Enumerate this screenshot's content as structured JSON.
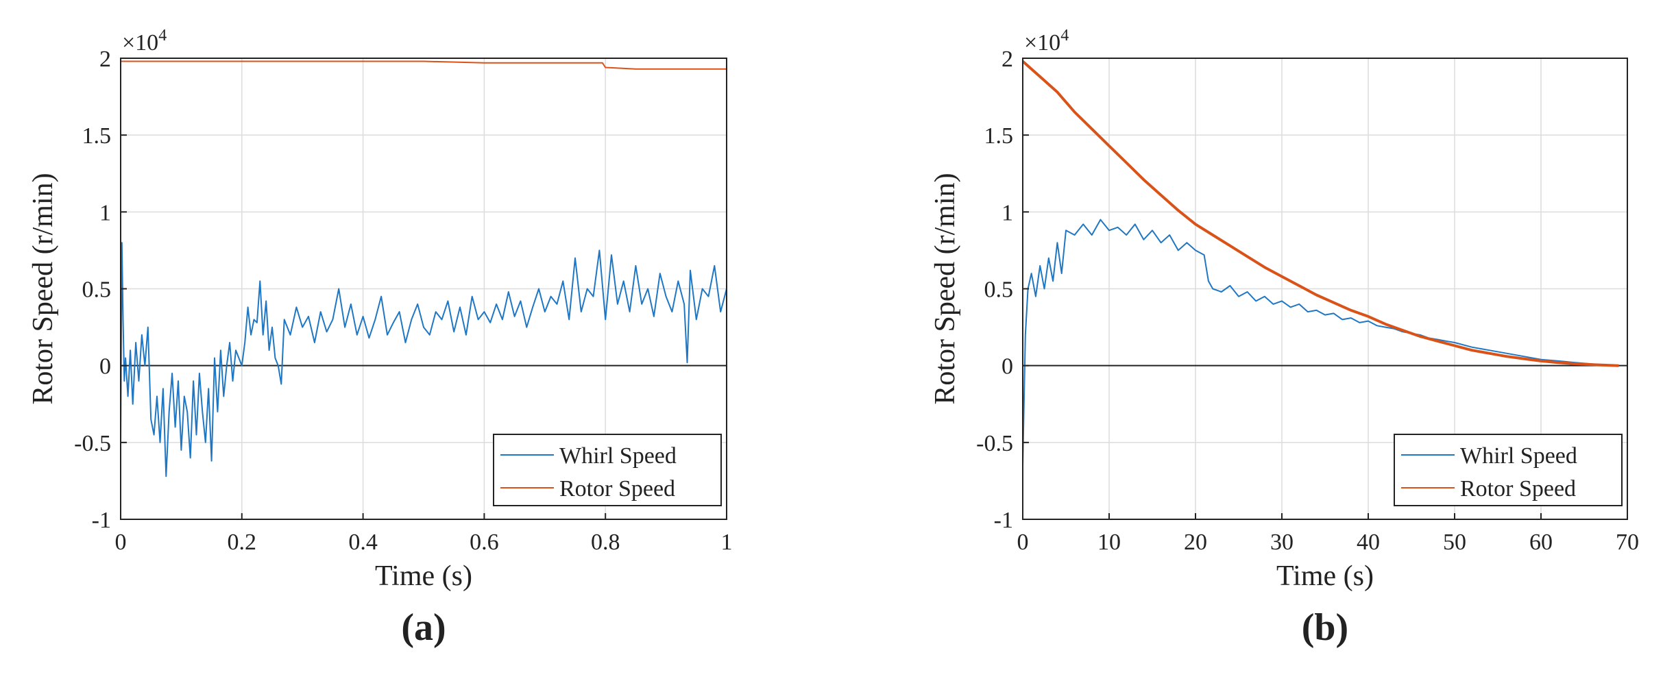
{
  "chart_data": [
    {
      "type": "line",
      "panel_label": "(a)",
      "xlabel": "Time (s)",
      "ylabel": "Rotor Speed (r/min)",
      "y_scale_note": "×10",
      "y_scale_exp": "4",
      "xlim": [
        0,
        1
      ],
      "ylim": [
        -1,
        2
      ],
      "xticks": [
        0,
        0.2,
        0.4,
        0.6,
        0.8,
        1
      ],
      "xtick_labels": [
        "0",
        "0.2",
        "0.4",
        "0.6",
        "0.8",
        "1"
      ],
      "yticks": [
        -1,
        -0.5,
        0,
        0.5,
        1,
        1.5,
        2
      ],
      "ytick_labels": [
        "-1",
        "-0.5",
        "0",
        "0.5",
        "1",
        "1.5",
        "2"
      ],
      "grid": true,
      "legend_position": "bottom-right",
      "series": [
        {
          "name": "Whirl Speed",
          "color": "#1f77c4",
          "x": [
            0,
            0.002,
            0.004,
            0.006,
            0.008,
            0.012,
            0.016,
            0.02,
            0.025,
            0.03,
            0.035,
            0.04,
            0.045,
            0.05,
            0.055,
            0.06,
            0.065,
            0.07,
            0.075,
            0.08,
            0.085,
            0.09,
            0.095,
            0.1,
            0.105,
            0.11,
            0.115,
            0.12,
            0.125,
            0.13,
            0.135,
            0.14,
            0.145,
            0.15,
            0.155,
            0.16,
            0.165,
            0.17,
            0.175,
            0.18,
            0.185,
            0.19,
            0.195,
            0.2,
            0.205,
            0.21,
            0.215,
            0.22,
            0.225,
            0.23,
            0.235,
            0.24,
            0.245,
            0.25,
            0.255,
            0.26,
            0.265,
            0.27,
            0.28,
            0.29,
            0.3,
            0.31,
            0.32,
            0.33,
            0.34,
            0.35,
            0.36,
            0.37,
            0.38,
            0.39,
            0.4,
            0.41,
            0.42,
            0.43,
            0.44,
            0.45,
            0.46,
            0.47,
            0.48,
            0.49,
            0.5,
            0.51,
            0.52,
            0.53,
            0.54,
            0.55,
            0.56,
            0.57,
            0.58,
            0.59,
            0.6,
            0.61,
            0.62,
            0.63,
            0.64,
            0.65,
            0.66,
            0.67,
            0.68,
            0.69,
            0.7,
            0.71,
            0.72,
            0.73,
            0.74,
            0.75,
            0.76,
            0.77,
            0.78,
            0.79,
            0.8,
            0.81,
            0.82,
            0.83,
            0.84,
            0.85,
            0.86,
            0.87,
            0.88,
            0.89,
            0.9,
            0.91,
            0.92,
            0.93,
            0.935,
            0.94,
            0.95,
            0.96,
            0.97,
            0.98,
            0.99,
            1.0
          ],
          "y": [
            -0.5,
            0.8,
            0.3,
            -0.1,
            0.05,
            -0.2,
            0.1,
            -0.25,
            0.15,
            -0.1,
            0.2,
            0.0,
            0.25,
            -0.35,
            -0.45,
            -0.2,
            -0.5,
            -0.15,
            -0.72,
            -0.3,
            -0.05,
            -0.4,
            -0.1,
            -0.55,
            -0.2,
            -0.3,
            -0.6,
            -0.1,
            -0.45,
            -0.05,
            -0.3,
            -0.5,
            -0.15,
            -0.62,
            0.05,
            -0.3,
            0.1,
            -0.2,
            0.0,
            0.15,
            -0.1,
            0.1,
            0.05,
            0.0,
            0.15,
            0.38,
            0.2,
            0.3,
            0.28,
            0.55,
            0.2,
            0.42,
            0.1,
            0.25,
            0.05,
            0.0,
            -0.12,
            0.3,
            0.2,
            0.38,
            0.25,
            0.32,
            0.15,
            0.35,
            0.22,
            0.3,
            0.5,
            0.25,
            0.4,
            0.2,
            0.32,
            0.18,
            0.3,
            0.45,
            0.2,
            0.28,
            0.35,
            0.15,
            0.3,
            0.4,
            0.25,
            0.2,
            0.35,
            0.3,
            0.42,
            0.22,
            0.38,
            0.2,
            0.45,
            0.3,
            0.35,
            0.28,
            0.4,
            0.3,
            0.48,
            0.32,
            0.42,
            0.25,
            0.38,
            0.5,
            0.35,
            0.45,
            0.4,
            0.55,
            0.3,
            0.7,
            0.35,
            0.5,
            0.45,
            0.75,
            0.3,
            0.72,
            0.4,
            0.55,
            0.35,
            0.65,
            0.4,
            0.5,
            0.32,
            0.6,
            0.45,
            0.35,
            0.55,
            0.4,
            0.02,
            0.62,
            0.3,
            0.5,
            0.45,
            0.65,
            0.35,
            0.5
          ]
        },
        {
          "name": "Rotor Speed",
          "color": "#d95319",
          "x": [
            0,
            0.1,
            0.2,
            0.3,
            0.4,
            0.5,
            0.6,
            0.7,
            0.795,
            0.8,
            0.85,
            0.9,
            0.95,
            1.0
          ],
          "y": [
            1.98,
            1.98,
            1.98,
            1.98,
            1.98,
            1.98,
            1.97,
            1.97,
            1.97,
            1.94,
            1.93,
            1.93,
            1.93,
            1.93
          ]
        }
      ]
    },
    {
      "type": "line",
      "panel_label": "(b)",
      "xlabel": "Time (s)",
      "ylabel": "Rotor Speed (r/min)",
      "y_scale_note": "×10",
      "y_scale_exp": "4",
      "xlim": [
        0,
        70
      ],
      "ylim": [
        -1,
        2
      ],
      "xticks": [
        0,
        10,
        20,
        30,
        40,
        50,
        60,
        70
      ],
      "xtick_labels": [
        "0",
        "10",
        "20",
        "30",
        "40",
        "50",
        "60",
        "70"
      ],
      "yticks": [
        -1,
        -0.5,
        0,
        0.5,
        1,
        1.5,
        2
      ],
      "ytick_labels": [
        "-1",
        "-0.5",
        "0",
        "0.5",
        "1",
        "1.5",
        "2"
      ],
      "grid": true,
      "legend_position": "bottom-right",
      "series": [
        {
          "name": "Whirl Speed",
          "color": "#1f77c4",
          "x": [
            0,
            0.3,
            0.6,
            1,
            1.5,
            2,
            2.5,
            3,
            3.5,
            4,
            4.5,
            5,
            6,
            7,
            8,
            9,
            10,
            11,
            12,
            13,
            14,
            15,
            16,
            17,
            18,
            19,
            20,
            21,
            21.5,
            22,
            23,
            24,
            25,
            26,
            27,
            28,
            29,
            30,
            31,
            32,
            33,
            34,
            35,
            36,
            37,
            38,
            39,
            40,
            41,
            42,
            43,
            44,
            45,
            46,
            47,
            48,
            49,
            50,
            52,
            54,
            56,
            58,
            60,
            62,
            64,
            66,
            68,
            69
          ],
          "y": [
            -0.65,
            0.2,
            0.5,
            0.6,
            0.45,
            0.65,
            0.5,
            0.7,
            0.55,
            0.8,
            0.6,
            0.88,
            0.85,
            0.92,
            0.85,
            0.95,
            0.88,
            0.9,
            0.85,
            0.92,
            0.82,
            0.88,
            0.8,
            0.85,
            0.75,
            0.8,
            0.75,
            0.72,
            0.55,
            0.5,
            0.48,
            0.52,
            0.45,
            0.48,
            0.42,
            0.45,
            0.4,
            0.42,
            0.38,
            0.4,
            0.35,
            0.36,
            0.33,
            0.34,
            0.3,
            0.31,
            0.28,
            0.29,
            0.26,
            0.25,
            0.24,
            0.22,
            0.21,
            0.2,
            0.18,
            0.17,
            0.16,
            0.15,
            0.12,
            0.1,
            0.08,
            0.06,
            0.04,
            0.03,
            0.02,
            0.01,
            0.0,
            0.0
          ]
        },
        {
          "name": "Rotor Speed",
          "color": "#d95319",
          "x": [
            0,
            2,
            4,
            6,
            8,
            10,
            12,
            14,
            16,
            18,
            20,
            22,
            24,
            26,
            28,
            30,
            32,
            34,
            36,
            38,
            40,
            42,
            44,
            46,
            48,
            50,
            52,
            54,
            56,
            58,
            60,
            62,
            64,
            66,
            68,
            69
          ],
          "y": [
            1.98,
            1.88,
            1.78,
            1.65,
            1.54,
            1.43,
            1.32,
            1.21,
            1.11,
            1.01,
            0.92,
            0.85,
            0.78,
            0.71,
            0.64,
            0.58,
            0.52,
            0.46,
            0.41,
            0.36,
            0.32,
            0.27,
            0.23,
            0.19,
            0.16,
            0.13,
            0.1,
            0.08,
            0.06,
            0.045,
            0.03,
            0.02,
            0.012,
            0.006,
            0.002,
            0.0
          ]
        }
      ]
    }
  ]
}
